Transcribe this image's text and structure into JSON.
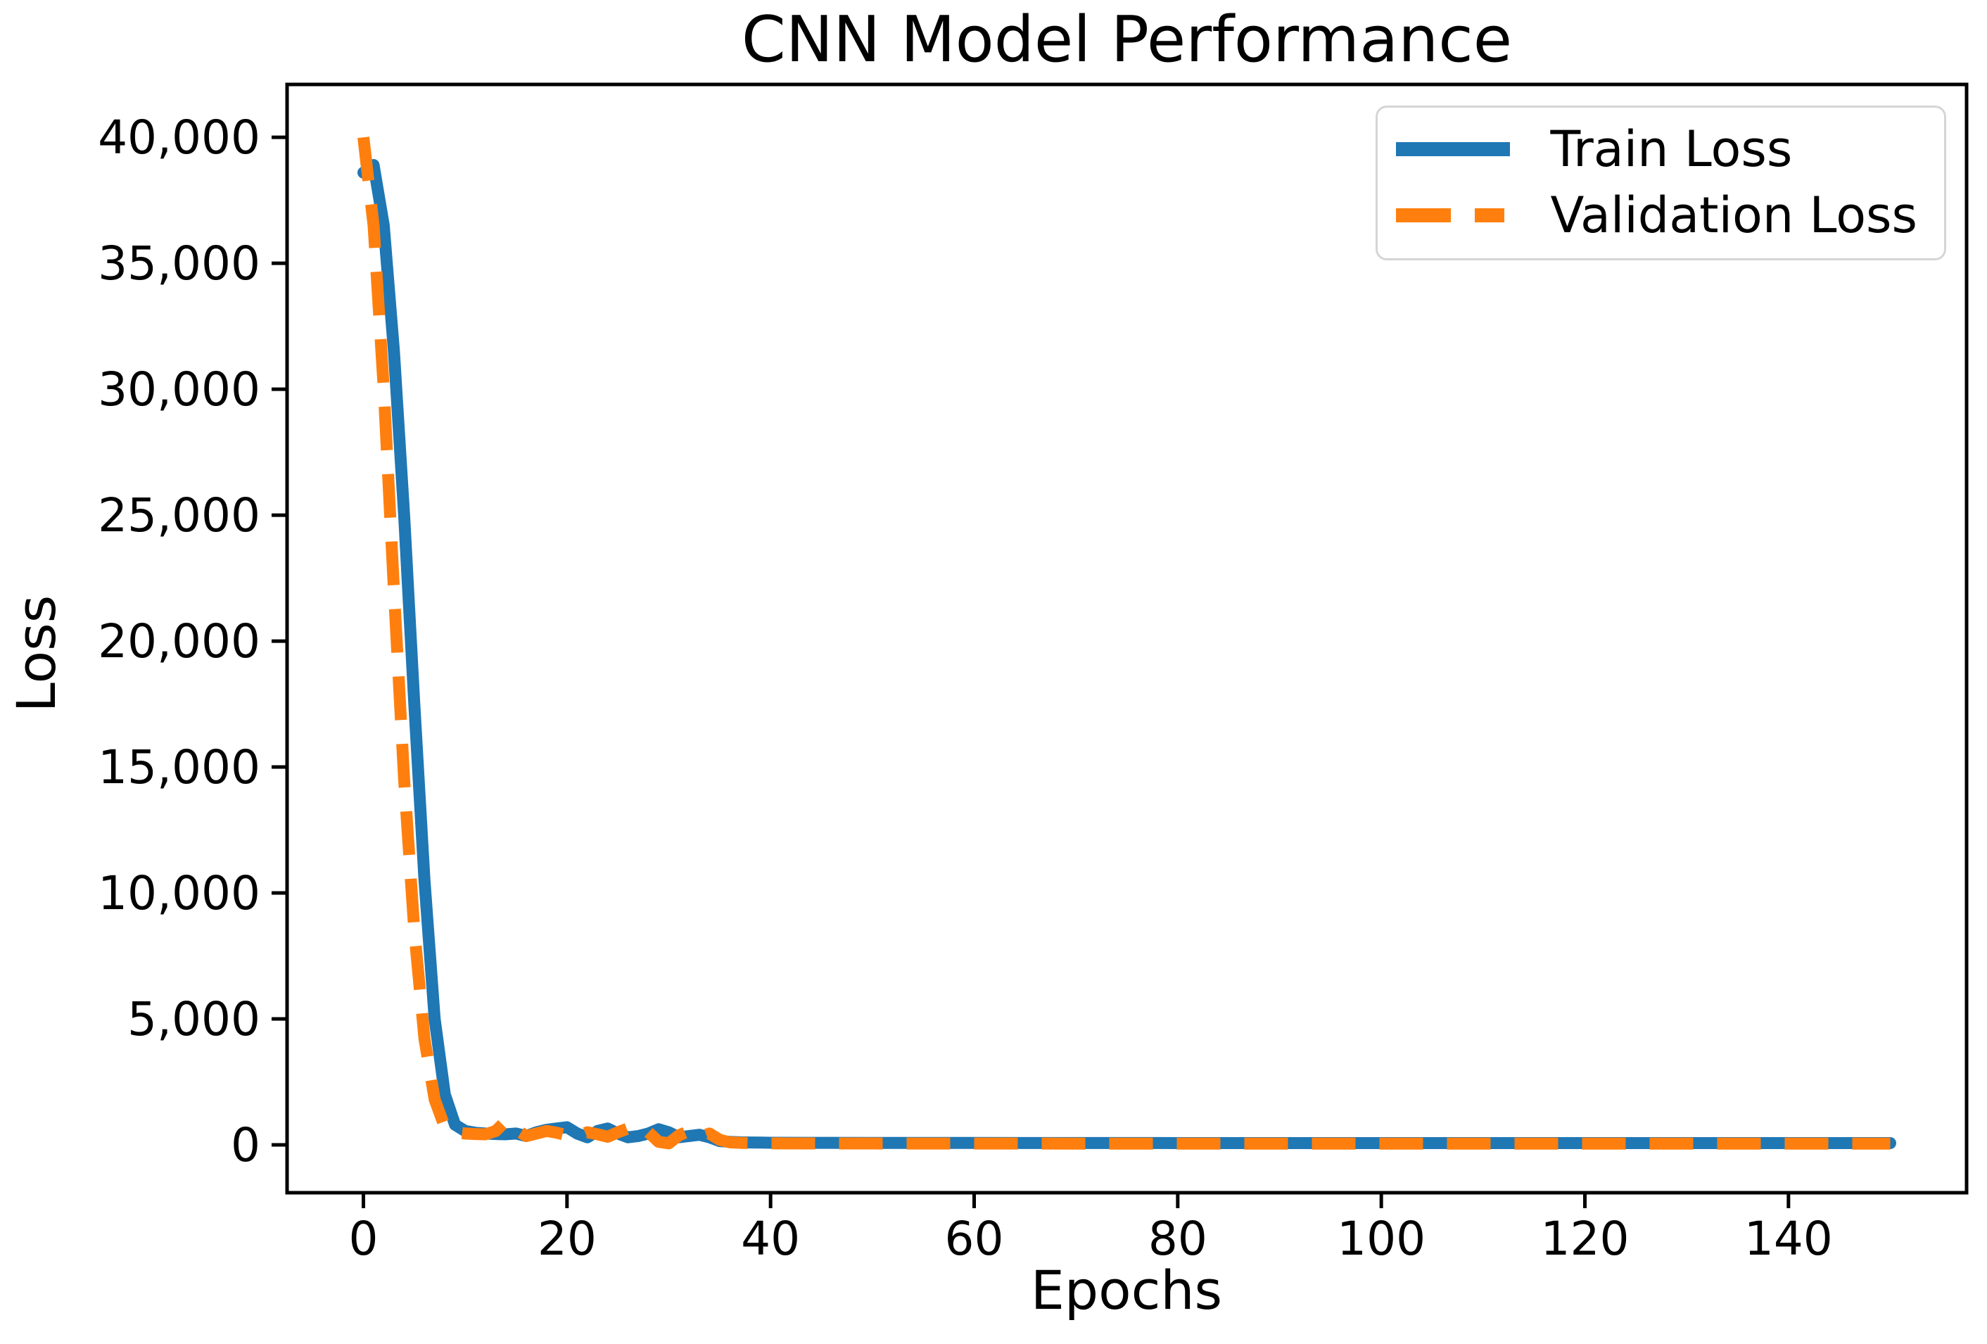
{
  "figure": {
    "background": "#ffffff",
    "text_color": "#000000",
    "spine_color": "#000000"
  },
  "chart_data": {
    "type": "line",
    "title": "CNN Model Performance",
    "xlabel": "Epochs",
    "ylabel": "Loss",
    "xlim": [
      -7.5,
      157.5
    ],
    "ylim": [
      -1900,
      42100
    ],
    "grid": false,
    "legend_position": "upper right",
    "x_ticks": [
      0,
      20,
      40,
      60,
      80,
      100,
      120,
      140
    ],
    "x_tick_labels": [
      "0",
      "20",
      "40",
      "60",
      "80",
      "100",
      "120",
      "140"
    ],
    "y_ticks": [
      0,
      5000,
      10000,
      15000,
      20000,
      25000,
      30000,
      35000,
      40000
    ],
    "y_tick_labels": [
      "0",
      "5,000",
      "10,000",
      "15,000",
      "20,000",
      "25,000",
      "30,000",
      "35,000",
      "40,000"
    ],
    "x": [
      0,
      1,
      2,
      3,
      4,
      5,
      6,
      7,
      8,
      9,
      10,
      11,
      12,
      13,
      14,
      15,
      16,
      17,
      18,
      19,
      20,
      21,
      22,
      23,
      24,
      25,
      26,
      27,
      28,
      29,
      30,
      31,
      32,
      33,
      34,
      35,
      36,
      37,
      38,
      39,
      40,
      45,
      50,
      55,
      60,
      65,
      70,
      75,
      80,
      85,
      90,
      95,
      100,
      105,
      110,
      115,
      120,
      125,
      130,
      135,
      140,
      145,
      150
    ],
    "series": [
      {
        "name": "Train Loss",
        "color": "#1f77b4",
        "style": "solid",
        "linewidth": 17,
        "values": [
          38600,
          38900,
          36500,
          31500,
          25000,
          17500,
          10500,
          5000,
          2000,
          800,
          550,
          480,
          450,
          430,
          420,
          450,
          350,
          500,
          600,
          650,
          700,
          450,
          300,
          550,
          650,
          450,
          300,
          350,
          450,
          620,
          500,
          300,
          350,
          400,
          300,
          150,
          120,
          100,
          95,
          90,
          85,
          80,
          78,
          76,
          75,
          74,
          73,
          72,
          71,
          70,
          70,
          70,
          70,
          70,
          70,
          70,
          70,
          70,
          70,
          70,
          70,
          70,
          70
        ]
      },
      {
        "name": "Validation Loss",
        "color": "#ff7f0e",
        "style": "dashed",
        "dash": [
          62,
          34
        ],
        "linewidth": 17,
        "values": [
          40000,
          36500,
          30000,
          22000,
          14500,
          8500,
          4200,
          1800,
          700,
          500,
          450,
          430,
          420,
          550,
          950,
          600,
          350,
          450,
          550,
          480,
          380,
          320,
          500,
          420,
          320,
          500,
          650,
          750,
          500,
          120,
          60,
          380,
          550,
          300,
          450,
          200,
          100,
          80,
          70,
          65,
          60,
          55,
          54,
          53,
          52,
          51,
          50,
          50,
          50,
          50,
          50,
          50,
          50,
          50,
          50,
          50,
          50,
          50,
          50,
          50,
          50,
          50,
          50
        ]
      }
    ]
  }
}
